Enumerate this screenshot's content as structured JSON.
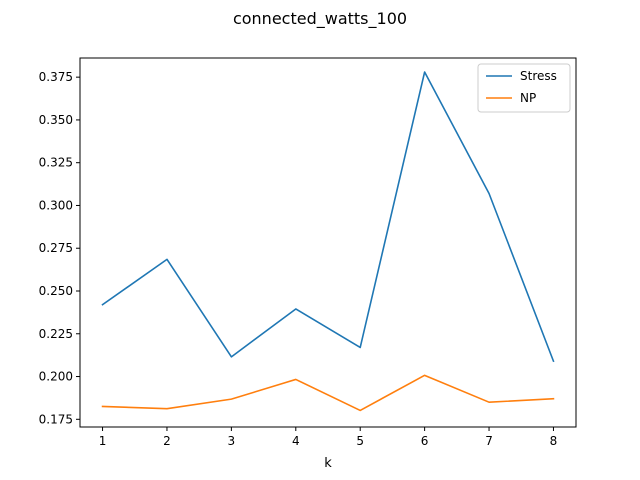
{
  "chart_data": {
    "type": "line",
    "title": "connected_watts_100",
    "xlabel": "k",
    "ylabel": "",
    "x": [
      1,
      2,
      3,
      4,
      5,
      6,
      7,
      8
    ],
    "xlim": [
      0.65,
      8.35
    ],
    "ylim": [
      0.1705,
      0.3862
    ],
    "yticks": [
      0.175,
      0.2,
      0.225,
      0.25,
      0.275,
      0.3,
      0.325,
      0.35,
      0.375
    ],
    "ytick_labels": [
      "0.175",
      "0.200",
      "0.225",
      "0.250",
      "0.275",
      "0.300",
      "0.325",
      "0.350",
      "0.375"
    ],
    "xtick_labels": [
      "1",
      "2",
      "3",
      "4",
      "5",
      "6",
      "7",
      "8"
    ],
    "legend_position": "top-right",
    "grid": false,
    "series": [
      {
        "name": "Stress",
        "color": "#1f77b4",
        "values": [
          0.242,
          0.2685,
          0.2115,
          0.2395,
          0.217,
          0.378,
          0.307,
          0.209
        ]
      },
      {
        "name": "NP",
        "color": "#ff7f0e",
        "values": [
          0.1825,
          0.1812,
          0.1868,
          0.1983,
          0.1802,
          0.2007,
          0.185,
          0.187
        ]
      }
    ]
  }
}
